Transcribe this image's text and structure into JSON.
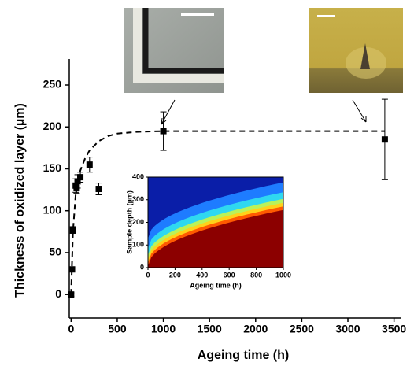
{
  "chart_data": [
    {
      "type": "scatter",
      "x_label": "Ageing time (h)",
      "y_label": "Thickness of oxidized layer (µm)",
      "xlim": [
        -20,
        3580
      ],
      "xticks": [
        0,
        500,
        1000,
        1500,
        2000,
        2500,
        3000,
        3500
      ],
      "ylim": [
        -28,
        281
      ],
      "yticks": [
        0,
        50,
        100,
        150,
        200,
        250
      ],
      "series": [
        {
          "type": "line",
          "color": "#000000",
          "dashed": true,
          "x": [
            0,
            20,
            50,
            100,
            150,
            200,
            300,
            400,
            500,
            700,
            1000,
            1500,
            2000,
            2500,
            3000,
            3400
          ],
          "values": [
            0,
            75,
            120,
            148,
            162,
            172,
            183,
            189,
            192,
            194,
            195,
            195,
            195,
            195,
            195,
            195
          ]
        },
        {
          "type": "scatter",
          "color": "#000000",
          "x": [
            0,
            10,
            20,
            50,
            60,
            70,
            100,
            200,
            300,
            1000,
            3400
          ],
          "values": [
            0,
            30,
            77,
            130,
            127,
            135,
            140,
            155,
            126,
            195,
            185
          ],
          "errors": [
            2,
            3,
            4,
            8,
            6,
            8,
            6,
            9,
            7,
            23,
            48
          ]
        }
      ]
    },
    {
      "type": "heatmap",
      "x_label": "Ageing time (h)",
      "y_label": "Sample depth (µm)",
      "xlim": [
        0,
        1000
      ],
      "xticks": [
        0,
        200,
        400,
        600,
        800,
        1000
      ],
      "ylim": [
        0,
        400
      ],
      "yticks": [
        0,
        100,
        200,
        300,
        400
      ]
    }
  ]
}
